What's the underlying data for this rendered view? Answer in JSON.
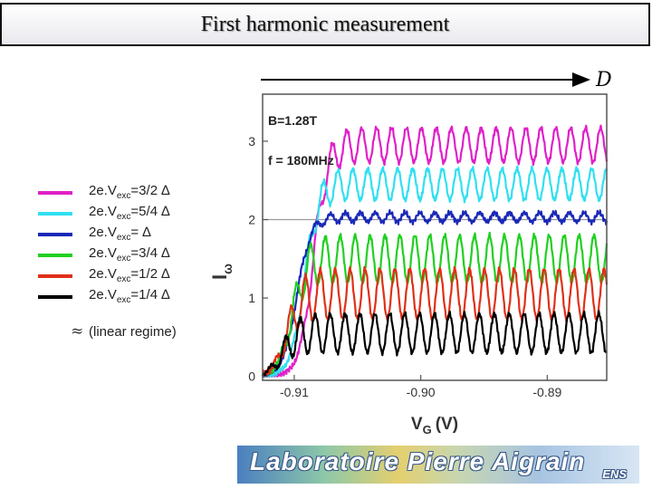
{
  "slide": {
    "title": "First harmonic measurement",
    "footer_logo_text": "Laboratoire Pierre Aigrain",
    "footer_logo_sub": "ENS"
  },
  "legend": {
    "approx_symbol": "≈",
    "note": "(linear regime)",
    "items": [
      {
        "prefix": "2e.V",
        "sub": "exc",
        "suffix": "=3/2 ∆",
        "color": "#e020c8"
      },
      {
        "prefix": "2e.V",
        "sub": "exc",
        "suffix": "=5/4 ∆",
        "color": "#30e0f0"
      },
      {
        "prefix": "2e.V",
        "sub": "exc",
        "suffix": "= ∆",
        "color": "#1a28b8"
      },
      {
        "prefix": "2e.V",
        "sub": "exc",
        "suffix": "=3/4 ∆",
        "color": "#20d020"
      },
      {
        "prefix": "2e.V",
        "sub": "exc",
        "suffix": "=1/2 ∆",
        "color": "#e03018"
      },
      {
        "prefix": "2e.V",
        "sub": "exc",
        "suffix": "=1/4 ∆",
        "color": "#000000"
      }
    ]
  },
  "chart_data": {
    "type": "line",
    "xlabel": "V",
    "xlabel_sub": "G",
    "xlabel_unit": "(V)",
    "ylabel": "I",
    "ylabel_sub": "ω",
    "xlim": [
      -0.9125,
      -0.8853
    ],
    "ylim": [
      -0.05,
      3.6
    ],
    "xticks": [
      -0.91,
      -0.9,
      -0.89
    ],
    "xtick_labels": [
      "-0.91",
      "-0.90",
      "-0.89"
    ],
    "yticks": [
      0,
      1,
      2,
      3
    ],
    "ytick_labels": [
      "0",
      "1",
      "2",
      "3"
    ],
    "reference_line_y": 2.0,
    "annotations": [
      "B=1.28T",
      "f = 180MHz"
    ],
    "arrow_label": "D",
    "series": [
      {
        "excitation": "3/2",
        "color": "#e020c8",
        "rise_x": -0.9085,
        "plateau": 2.95,
        "amplitude": 0.22,
        "period": 0.00118
      },
      {
        "excitation": "5/4",
        "color": "#30e0f0",
        "rise_x": -0.9092,
        "plateau": 2.45,
        "amplitude": 0.2,
        "period": 0.00118
      },
      {
        "excitation": "1",
        "color": "#1a28b8",
        "rise_x": -0.9098,
        "plateau": 2.03,
        "amplitude": 0.06,
        "period": 0.00118
      },
      {
        "excitation": "3/4",
        "color": "#20d020",
        "rise_x": -0.9102,
        "plateau": 1.5,
        "amplitude": 0.3,
        "period": 0.00118
      },
      {
        "excitation": "1/2",
        "color": "#e03018",
        "rise_x": -0.9106,
        "plateau": 1.05,
        "amplitude": 0.32,
        "period": 0.00118
      },
      {
        "excitation": "1/4",
        "color": "#000000",
        "rise_x": -0.911,
        "plateau": 0.55,
        "amplitude": 0.25,
        "period": 0.00118
      }
    ]
  }
}
